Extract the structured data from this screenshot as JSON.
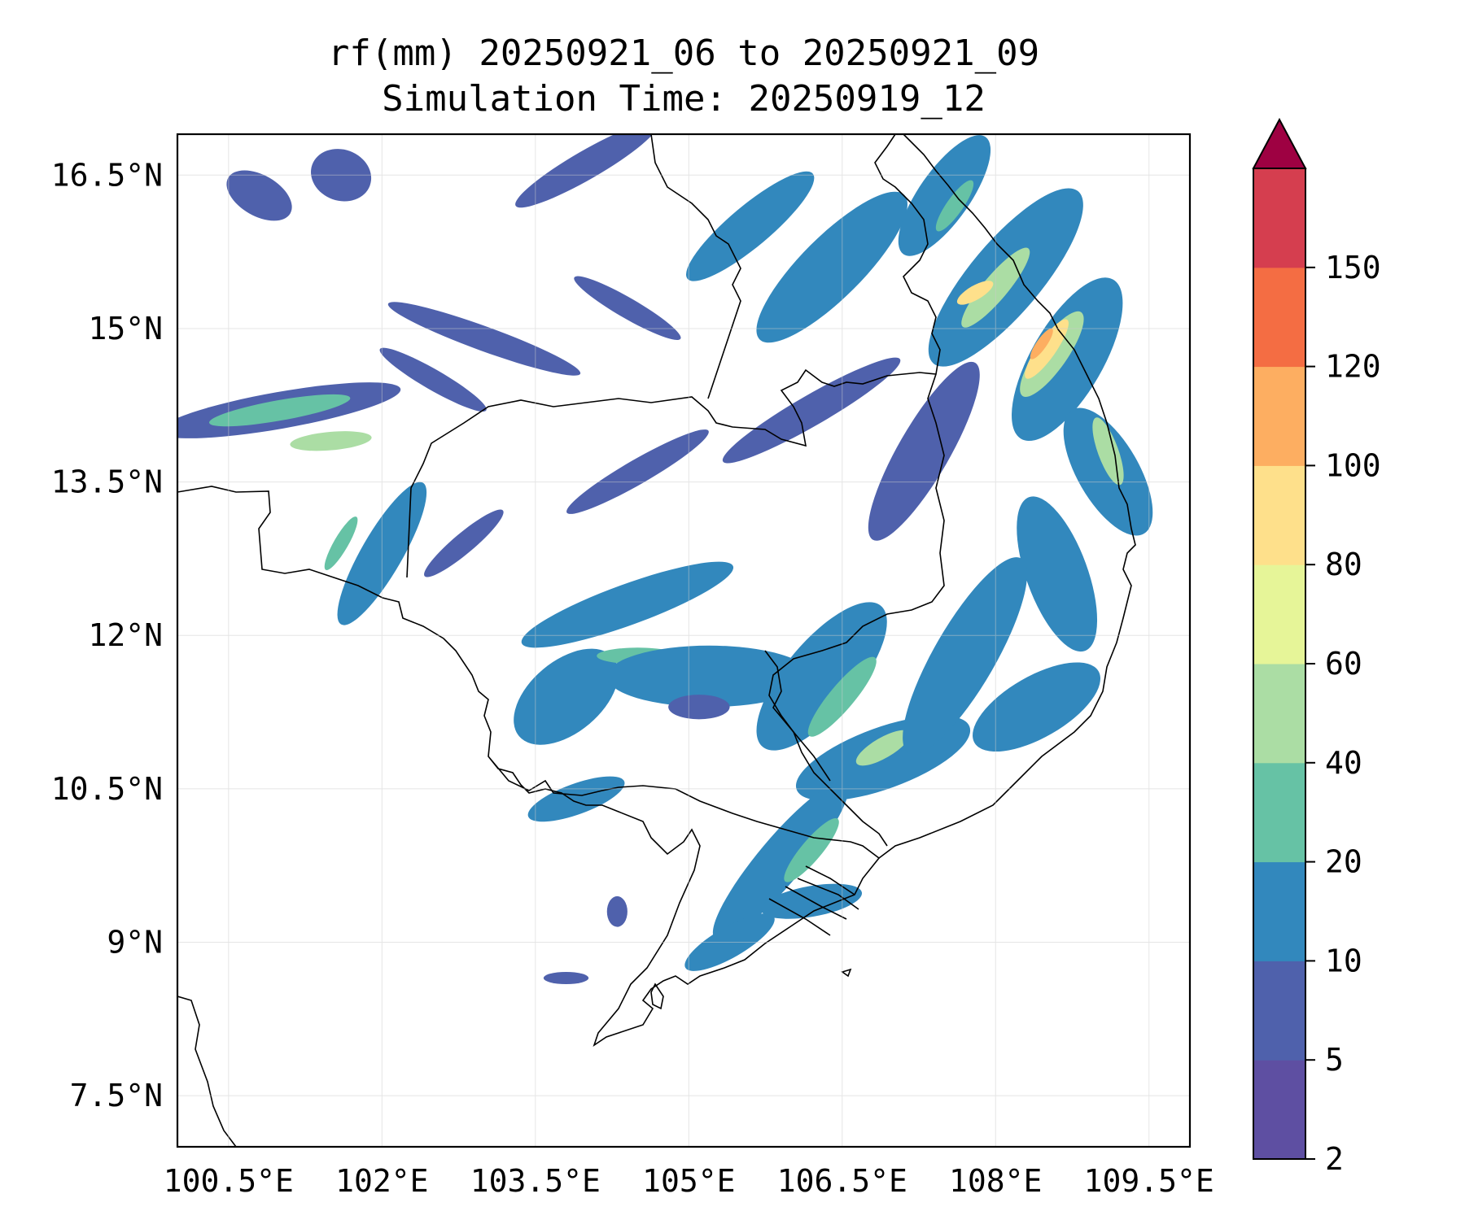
{
  "title": {
    "line1": "rf(mm) 20250921_06 to 20250921_09",
    "line2": "Simulation Time: 20250919_12"
  },
  "map": {
    "lon_range": [
      100.0,
      109.9
    ],
    "lat_range": [
      7.0,
      16.9
    ],
    "lat_ticks": [
      {
        "value": 16.5,
        "label": "16.5°N"
      },
      {
        "value": 15.0,
        "label": "15°N"
      },
      {
        "value": 13.5,
        "label": "13.5°N"
      },
      {
        "value": 12.0,
        "label": "12°N"
      },
      {
        "value": 10.5,
        "label": "10.5°N"
      },
      {
        "value": 9.0,
        "label": "9°N"
      },
      {
        "value": 7.5,
        "label": "7.5°N"
      }
    ],
    "lon_ticks": [
      {
        "value": 100.5,
        "label": "100.5°E"
      },
      {
        "value": 102.0,
        "label": "102°E"
      },
      {
        "value": 103.5,
        "label": "103.5°E"
      },
      {
        "value": 105.0,
        "label": "105°E"
      },
      {
        "value": 106.5,
        "label": "106.5°E"
      },
      {
        "value": 108.0,
        "label": "108°E"
      },
      {
        "value": 109.5,
        "label": "109.5°E"
      }
    ],
    "rain_blobs": [
      {
        "lon": 101.0,
        "lat": 14.2,
        "rlon": 1.2,
        "rlat": 0.18,
        "rot": -10,
        "cls": 1
      },
      {
        "lon": 101.0,
        "lat": 14.2,
        "rlon": 0.7,
        "rlat": 0.1,
        "rot": -10,
        "cls": 3
      },
      {
        "lon": 101.5,
        "lat": 13.9,
        "rlon": 0.4,
        "rlat": 0.09,
        "rot": -5,
        "cls": 4
      },
      {
        "lon": 100.8,
        "lat": 16.3,
        "rlon": 0.35,
        "rlat": 0.2,
        "rot": 30,
        "cls": 1
      },
      {
        "lon": 101.6,
        "lat": 16.5,
        "rlon": 0.3,
        "rlat": 0.25,
        "rot": 20,
        "cls": 1
      },
      {
        "lon": 103.0,
        "lat": 14.9,
        "rlon": 1.0,
        "rlat": 0.12,
        "rot": 20,
        "cls": 1
      },
      {
        "lon": 102.5,
        "lat": 14.5,
        "rlon": 0.6,
        "rlat": 0.1,
        "rot": 30,
        "cls": 1
      },
      {
        "lon": 104.4,
        "lat": 15.2,
        "rlon": 0.6,
        "rlat": 0.1,
        "rot": 30,
        "cls": 1
      },
      {
        "lon": 104.0,
        "lat": 16.6,
        "rlon": 0.8,
        "rlat": 0.14,
        "rot": -30,
        "cls": 1
      },
      {
        "lon": 105.6,
        "lat": 16.0,
        "rlon": 0.8,
        "rlat": 0.2,
        "rot": -40,
        "cls": 2
      },
      {
        "lon": 106.4,
        "lat": 15.6,
        "rlon": 1.0,
        "rlat": 0.3,
        "rot": -45,
        "cls": 2
      },
      {
        "lon": 107.5,
        "lat": 16.3,
        "rlon": 0.7,
        "rlat": 0.25,
        "rot": -55,
        "cls": 2
      },
      {
        "lon": 107.6,
        "lat": 16.2,
        "rlon": 0.3,
        "rlat": 0.08,
        "rot": -55,
        "cls": 3
      },
      {
        "lon": 108.1,
        "lat": 15.5,
        "rlon": 1.1,
        "rlat": 0.35,
        "rot": -50,
        "cls": 2
      },
      {
        "lon": 108.0,
        "lat": 15.4,
        "rlon": 0.5,
        "rlat": 0.12,
        "rot": -50,
        "cls": 4
      },
      {
        "lon": 107.8,
        "lat": 15.35,
        "rlon": 0.2,
        "rlat": 0.07,
        "rot": -30,
        "cls": 6
      },
      {
        "lon": 108.7,
        "lat": 14.7,
        "rlon": 0.9,
        "rlat": 0.35,
        "rot": -60,
        "cls": 2
      },
      {
        "lon": 108.55,
        "lat": 14.75,
        "rlon": 0.5,
        "rlat": 0.15,
        "rot": -55,
        "cls": 4
      },
      {
        "lon": 108.5,
        "lat": 14.8,
        "rlon": 0.35,
        "rlat": 0.09,
        "rot": -55,
        "cls": 6
      },
      {
        "lon": 108.45,
        "lat": 14.85,
        "rlon": 0.18,
        "rlat": 0.05,
        "rot": -55,
        "cls": 7
      },
      {
        "lon": 109.1,
        "lat": 13.6,
        "rlon": 0.7,
        "rlat": 0.3,
        "rot": 60,
        "cls": 2
      },
      {
        "lon": 109.1,
        "lat": 13.8,
        "rlon": 0.35,
        "rlat": 0.1,
        "rot": 70,
        "cls": 4
      },
      {
        "lon": 108.6,
        "lat": 12.6,
        "rlon": 0.8,
        "rlat": 0.3,
        "rot": 70,
        "cls": 2
      },
      {
        "lon": 107.3,
        "lat": 13.8,
        "rlon": 1.0,
        "rlat": 0.25,
        "rot": -60,
        "cls": 1
      },
      {
        "lon": 106.2,
        "lat": 14.2,
        "rlon": 1.0,
        "rlat": 0.15,
        "rot": -30,
        "cls": 1
      },
      {
        "lon": 104.5,
        "lat": 13.6,
        "rlon": 0.8,
        "rlat": 0.12,
        "rot": -30,
        "cls": 1
      },
      {
        "lon": 102.0,
        "lat": 12.8,
        "rlon": 0.8,
        "rlat": 0.2,
        "rot": -60,
        "cls": 2
      },
      {
        "lon": 101.6,
        "lat": 12.9,
        "rlon": 0.3,
        "rlat": 0.07,
        "rot": -60,
        "cls": 3
      },
      {
        "lon": 104.4,
        "lat": 12.3,
        "rlon": 1.1,
        "rlat": 0.2,
        "rot": -20,
        "cls": 2
      },
      {
        "lon": 103.8,
        "lat": 11.4,
        "rlon": 0.6,
        "rlat": 0.35,
        "rot": -40,
        "cls": 2
      },
      {
        "lon": 104.5,
        "lat": 11.8,
        "rlon": 0.4,
        "rlat": 0.08,
        "rot": 0,
        "cls": 3
      },
      {
        "lon": 105.2,
        "lat": 11.6,
        "rlon": 1.0,
        "rlat": 0.3,
        "rot": 0,
        "cls": 2
      },
      {
        "lon": 105.1,
        "lat": 11.3,
        "rlon": 0.3,
        "rlat": 0.12,
        "rot": 0,
        "cls": 1
      },
      {
        "lon": 106.3,
        "lat": 11.6,
        "rlon": 0.9,
        "rlat": 0.35,
        "rot": -50,
        "cls": 2
      },
      {
        "lon": 106.5,
        "lat": 11.4,
        "rlon": 0.5,
        "rlat": 0.12,
        "rot": -50,
        "cls": 3
      },
      {
        "lon": 106.9,
        "lat": 10.8,
        "rlon": 0.9,
        "rlat": 0.3,
        "rot": -20,
        "cls": 2
      },
      {
        "lon": 106.9,
        "lat": 10.9,
        "rlon": 0.3,
        "rlat": 0.1,
        "rot": -30,
        "cls": 4
      },
      {
        "lon": 107.7,
        "lat": 11.8,
        "rlon": 1.1,
        "rlat": 0.3,
        "rot": -60,
        "cls": 2
      },
      {
        "lon": 108.4,
        "lat": 11.3,
        "rlon": 0.7,
        "rlat": 0.3,
        "rot": -30,
        "cls": 2
      },
      {
        "lon": 103.9,
        "lat": 10.4,
        "rlon": 0.5,
        "rlat": 0.15,
        "rot": -20,
        "cls": 2
      },
      {
        "lon": 105.9,
        "lat": 9.8,
        "rlon": 1.0,
        "rlat": 0.22,
        "rot": -50,
        "cls": 2
      },
      {
        "lon": 106.2,
        "lat": 9.9,
        "rlon": 0.4,
        "rlat": 0.1,
        "rot": -50,
        "cls": 3
      },
      {
        "lon": 105.4,
        "lat": 9.0,
        "rlon": 0.5,
        "rlat": 0.15,
        "rot": -30,
        "cls": 2
      },
      {
        "lon": 106.2,
        "lat": 9.4,
        "rlon": 0.5,
        "rlat": 0.15,
        "rot": -10,
        "cls": 2
      },
      {
        "lon": 103.8,
        "lat": 8.65,
        "rlon": 0.22,
        "rlat": 0.06,
        "rot": 0,
        "cls": 1
      },
      {
        "lon": 104.3,
        "lat": 9.3,
        "rlon": 0.1,
        "rlat": 0.15,
        "rot": 0,
        "cls": 1
      },
      {
        "lon": 102.8,
        "lat": 12.9,
        "rlon": 0.5,
        "rlat": 0.1,
        "rot": -40,
        "cls": 1
      }
    ]
  },
  "colorbar": {
    "levels": [
      "2",
      "5",
      "10",
      "20",
      "40",
      "60",
      "80",
      "100",
      "120",
      "150"
    ],
    "colors": [
      "#5e4fa2",
      "#4f61ac",
      "#3288bd",
      "#66c2a5",
      "#abdda4",
      "#e6f598",
      "#fee08b",
      "#fdae61",
      "#f46d43",
      "#d53e4f"
    ],
    "extend_color": "#9e0142"
  }
}
